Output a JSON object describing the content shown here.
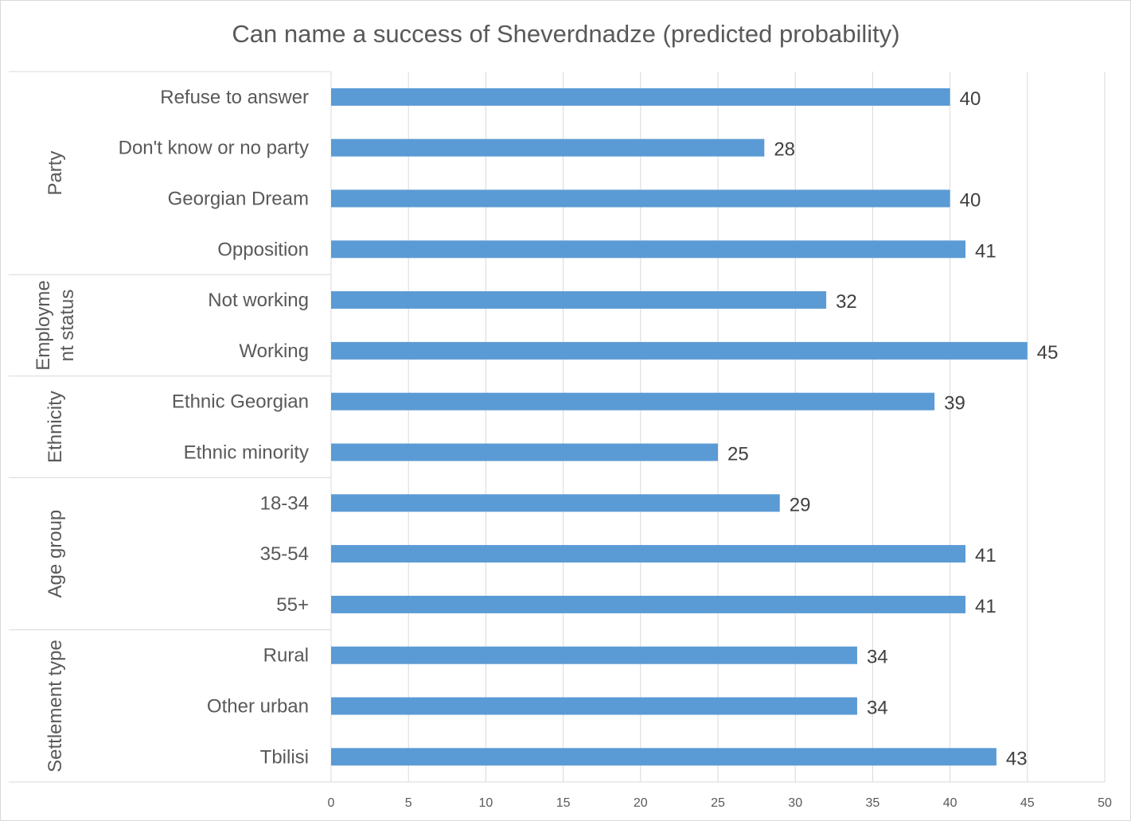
{
  "chart_data": {
    "type": "bar",
    "orientation": "horizontal",
    "title": "Can name a success of Sheverdnadze (predicted probability)",
    "xlabel": "",
    "ylabel": "",
    "xlim": [
      0,
      50
    ],
    "x_ticks": [
      0,
      5,
      10,
      15,
      20,
      25,
      30,
      35,
      40,
      45,
      50
    ],
    "grid": true,
    "legend": "none",
    "bar_color": "#5b9bd5",
    "groups": [
      {
        "name": "Party",
        "name_lines": [
          "Party"
        ],
        "categories": [
          "Refuse to answer",
          "Don't know or no party",
          "Georgian Dream",
          "Opposition"
        ],
        "values": [
          40,
          28,
          40,
          41
        ]
      },
      {
        "name": "Employment status",
        "name_lines": [
          "Employme",
          "nt status"
        ],
        "categories": [
          "Not working",
          "Working"
        ],
        "values": [
          32,
          45
        ]
      },
      {
        "name": "Ethnicity",
        "name_lines": [
          "Ethnicity"
        ],
        "categories": [
          "Ethnic Georgian",
          "Ethnic minority"
        ],
        "values": [
          39,
          25
        ]
      },
      {
        "name": "Age group",
        "name_lines": [
          "Age group"
        ],
        "categories": [
          "18-34",
          "35-54",
          "55+"
        ],
        "values": [
          29,
          41,
          41
        ]
      },
      {
        "name": "Settlement type",
        "name_lines": [
          "Settlement type"
        ],
        "categories": [
          "Rural",
          "Other urban",
          "Tbilisi"
        ],
        "values": [
          34,
          34,
          43
        ]
      }
    ]
  }
}
